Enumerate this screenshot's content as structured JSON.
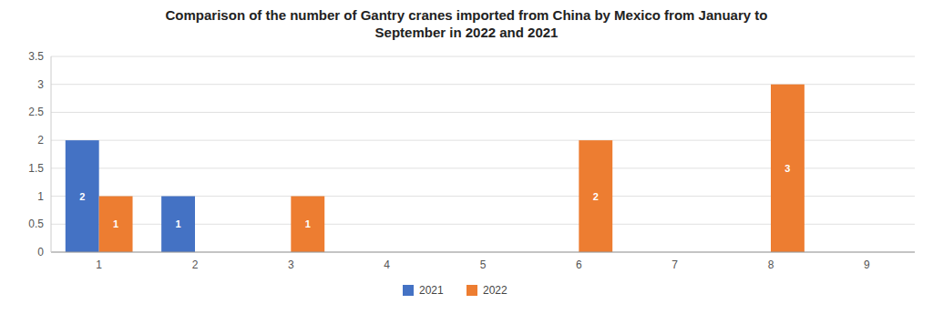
{
  "chart_data": {
    "type": "bar",
    "title": "Comparison of the number of Gantry cranes imported from China by Mexico from January to\nSeptember in 2022 and 2021",
    "categories": [
      1,
      2,
      3,
      4,
      5,
      6,
      7,
      8,
      9
    ],
    "series": [
      {
        "name": "2021",
        "color": "#4472c4",
        "values": [
          2,
          1,
          0,
          0,
          0,
          0,
          0,
          0,
          0
        ]
      },
      {
        "name": "2022",
        "color": "#ed7d31",
        "values": [
          1,
          0,
          1,
          0,
          0,
          2,
          0,
          3,
          0
        ]
      }
    ],
    "ylim": [
      0,
      3.5
    ],
    "yticks": [
      0,
      0.5,
      1,
      1.5,
      2,
      2.5,
      3,
      3.5
    ],
    "grid": true,
    "legend": "bottom",
    "data_labels": true
  }
}
